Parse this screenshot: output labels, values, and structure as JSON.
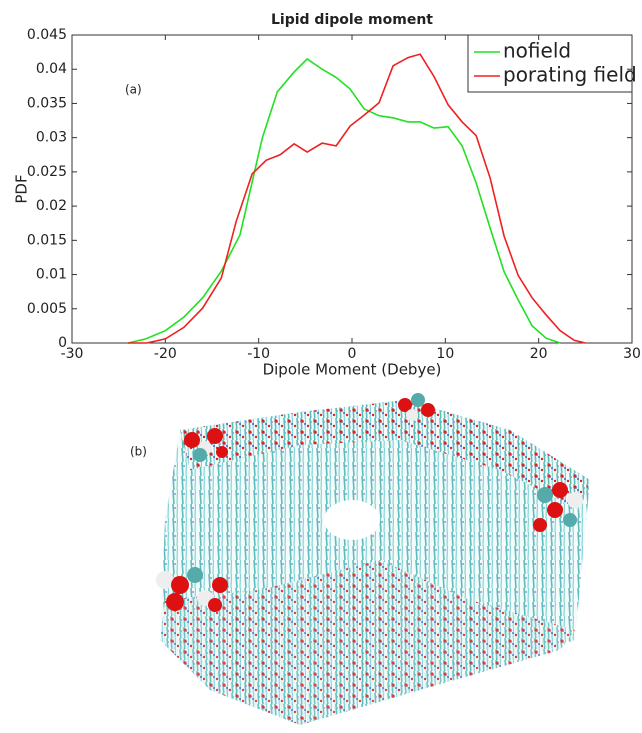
{
  "chart_data": {
    "type": "line",
    "title": "Lipid dipole moment",
    "x_label": "Dipole Moment (Debye)",
    "y_label": "PDF",
    "annotations": [
      "(a)",
      "(b)"
    ],
    "series": [
      {
        "name": "nofield",
        "color": "#22e022",
        "x": [
          -24,
          -22.1,
          -20,
          -18,
          -16,
          -14,
          -12,
          -10.7,
          -9.6,
          -8,
          -6.2,
          -4.8,
          -3.2,
          -1.7,
          -0.2,
          1.3,
          2.9,
          4.4,
          6,
          7.3,
          8.8,
          10.3,
          11.8,
          13.3,
          14.8,
          16.3,
          17.8,
          19.3,
          20.8,
          22.3
        ],
        "values": [
          0,
          0.0006,
          0.0018,
          0.0038,
          0.0066,
          0.0105,
          0.0158,
          0.0235,
          0.03,
          0.0367,
          0.0396,
          0.0415,
          0.04,
          0.0388,
          0.0371,
          0.0342,
          0.0332,
          0.0329,
          0.0323,
          0.0323,
          0.0314,
          0.0316,
          0.0288,
          0.0234,
          0.0168,
          0.0104,
          0.0063,
          0.0025,
          0.0007,
          0
        ]
      },
      {
        "name": "porating field",
        "color": "#ee2020",
        "x": [
          -24,
          -22,
          -20,
          -18,
          -16,
          -14,
          -12.4,
          -10.7,
          -9.2,
          -7.7,
          -6.2,
          -4.8,
          -3.2,
          -1.7,
          -0.2,
          1.3,
          2.9,
          4.4,
          6,
          7.3,
          8.8,
          10.3,
          11.8,
          13.3,
          14.8,
          16.3,
          17.8,
          19.3,
          20.8,
          22.3,
          23.8,
          25
        ],
        "values": [
          0,
          0,
          0.0006,
          0.0023,
          0.0051,
          0.0095,
          0.0178,
          0.0247,
          0.0267,
          0.0275,
          0.0291,
          0.0279,
          0.0292,
          0.0288,
          0.0317,
          0.0333,
          0.0351,
          0.0405,
          0.0417,
          0.0422,
          0.0389,
          0.0348,
          0.0323,
          0.0303,
          0.0241,
          0.0156,
          0.0099,
          0.0066,
          0.0041,
          0.0018,
          0.0004,
          0
        ]
      }
    ],
    "xlim": [
      -30,
      30
    ],
    "xticks": [
      -30,
      -20,
      -10,
      0,
      10,
      20,
      30
    ],
    "ylim": [
      0,
      0.045
    ],
    "yticks": [
      0,
      0.005,
      0.01,
      0.015,
      0.02,
      0.025,
      0.03,
      0.035,
      0.04,
      0.045
    ],
    "grid": false,
    "legend_position": "upper-right"
  }
}
